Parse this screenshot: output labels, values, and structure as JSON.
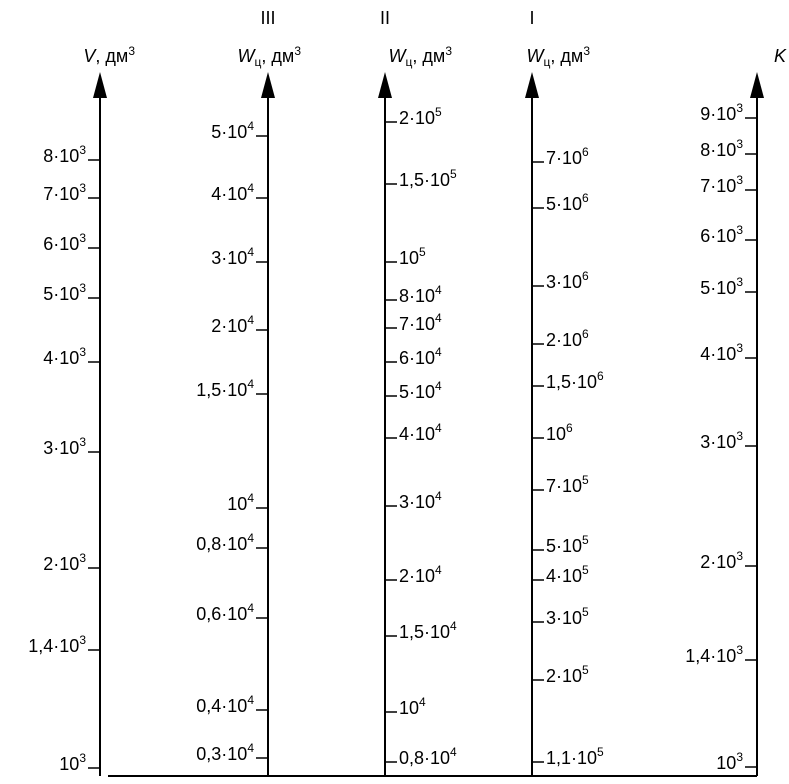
{
  "axes": [
    {
      "id": "V",
      "title_main": "V",
      "title_sub": "",
      "title_tail": ", дм",
      "title_sup": "3",
      "roman": "",
      "labels_side": "left",
      "ticks": [
        {
          "m": "10",
          "e": "3"
        },
        {
          "m": "1,4·10",
          "e": "3"
        },
        {
          "m": "2·10",
          "e": "3"
        },
        {
          "m": "3·10",
          "e": "3"
        },
        {
          "m": "4·10",
          "e": "3"
        },
        {
          "m": "5·10",
          "e": "3"
        },
        {
          "m": "6·10",
          "e": "3"
        },
        {
          "m": "7·10",
          "e": "3"
        },
        {
          "m": "8·10",
          "e": "3"
        }
      ]
    },
    {
      "id": "W3",
      "title_main": "W",
      "title_sub": "ц",
      "title_tail": ", дм",
      "title_sup": "3",
      "roman": "III",
      "labels_side": "left",
      "ticks": [
        {
          "m": "0,3·10",
          "e": "4"
        },
        {
          "m": "0,4·10",
          "e": "4"
        },
        {
          "m": "0,6·10",
          "e": "4"
        },
        {
          "m": "0,8·10",
          "e": "4"
        },
        {
          "m": "10",
          "e": "4"
        },
        {
          "m": "1,5·10",
          "e": "4"
        },
        {
          "m": "2·10",
          "e": "4"
        },
        {
          "m": "3·10",
          "e": "4"
        },
        {
          "m": "4·10",
          "e": "4"
        },
        {
          "m": "5·10",
          "e": "4"
        }
      ]
    },
    {
      "id": "W2",
      "title_main": "W",
      "title_sub": "ц",
      "title_tail": ", дм",
      "title_sup": "3",
      "roman": "II",
      "labels_side": "right",
      "ticks": [
        {
          "m": "0,8·10",
          "e": "4"
        },
        {
          "m": "10",
          "e": "4"
        },
        {
          "m": "1,5·10",
          "e": "4"
        },
        {
          "m": "2·10",
          "e": "4"
        },
        {
          "m": "3·10",
          "e": "4"
        },
        {
          "m": "4·10",
          "e": "4"
        },
        {
          "m": "5·10",
          "e": "4"
        },
        {
          "m": "6·10",
          "e": "4"
        },
        {
          "m": "7·10",
          "e": "4"
        },
        {
          "m": "8·10",
          "e": "4"
        },
        {
          "m": "10",
          "e": "5"
        },
        {
          "m": "1,5·10",
          "e": "5"
        },
        {
          "m": "2·10",
          "e": "5"
        }
      ]
    },
    {
      "id": "W1",
      "title_main": "W",
      "title_sub": "ц",
      "title_tail": ", дм",
      "title_sup": "3",
      "roman": "I",
      "labels_side": "right",
      "ticks": [
        {
          "m": "1,1·10",
          "e": "5"
        },
        {
          "m": "2·10",
          "e": "5"
        },
        {
          "m": "3·10",
          "e": "5"
        },
        {
          "m": "4·10",
          "e": "5"
        },
        {
          "m": "5·10",
          "e": "5"
        },
        {
          "m": "7·10",
          "e": "5"
        },
        {
          "m": "10",
          "e": "6"
        },
        {
          "m": "1,5·10",
          "e": "6"
        },
        {
          "m": "2·10",
          "e": "6"
        },
        {
          "m": "3·10",
          "e": "6"
        },
        {
          "m": "5·10",
          "e": "6"
        },
        {
          "m": "7·10",
          "e": "6"
        }
      ]
    },
    {
      "id": "K",
      "title_main": "K",
      "title_sub": "",
      "title_tail": "",
      "title_sup": "",
      "roman": "",
      "labels_side": "left",
      "ticks": [
        {
          "m": "10",
          "e": "3"
        },
        {
          "m": "1,4·10",
          "e": "3"
        },
        {
          "m": "2·10",
          "e": "3"
        },
        {
          "m": "3·10",
          "e": "3"
        },
        {
          "m": "4·10",
          "e": "3"
        },
        {
          "m": "5·10",
          "e": "3"
        },
        {
          "m": "6·10",
          "e": "3"
        },
        {
          "m": "7·10",
          "e": "3"
        },
        {
          "m": "8·10",
          "e": "3"
        },
        {
          "m": "9·10",
          "e": "3"
        }
      ]
    }
  ]
}
